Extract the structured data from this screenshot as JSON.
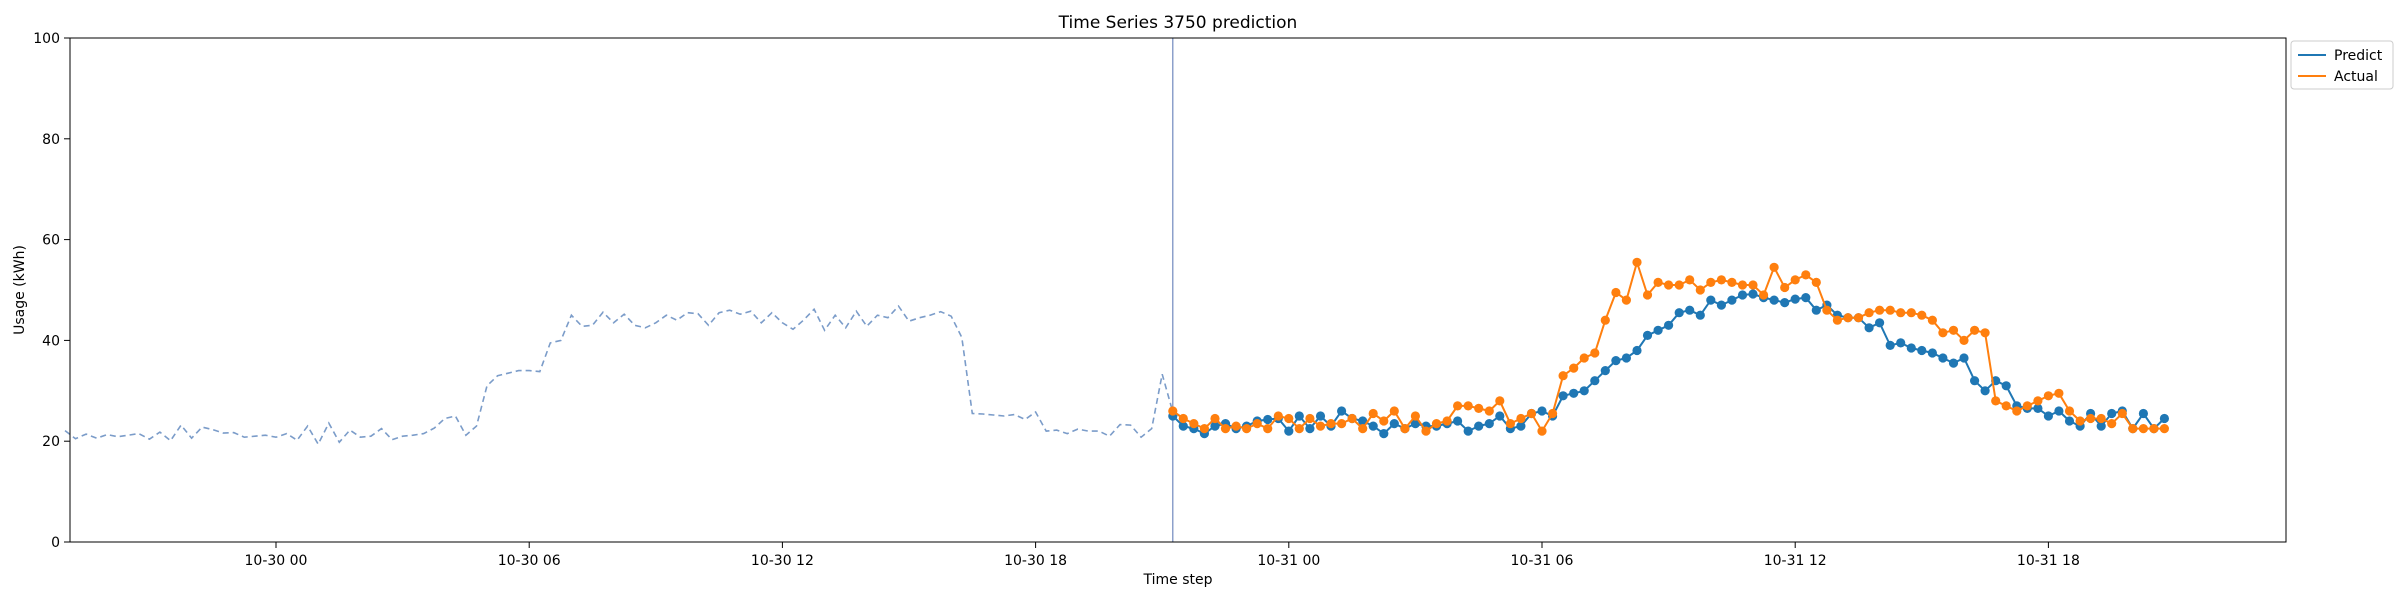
{
  "chart_data": {
    "type": "line",
    "title": "Time Series 3750 prediction",
    "xlabel": "Time step",
    "ylabel": "Usage (kWh)",
    "ylim": [
      0,
      100
    ],
    "yticks": [
      0,
      20,
      40,
      60,
      80,
      100
    ],
    "xticks": [
      "10-30 00",
      "10-30 06",
      "10-30 12",
      "10-30 18",
      "10-31 00",
      "10-31 06",
      "10-31 12",
      "10-31 18"
    ],
    "grid": false,
    "legend_position": "upper right, outside plot",
    "colors": {
      "predict": "#1f77b4",
      "actual": "#ff7f0e",
      "history": "#7b9cc9",
      "forecast_start_line": "#8da0cb"
    },
    "history": {
      "start": "10-29 19:00",
      "step_minutes": 15,
      "values": [
        22.1,
        20.5,
        21.4,
        20.6,
        21.3,
        20.9,
        21.2,
        21.5,
        20.4,
        21.8,
        20.1,
        23.2,
        20.6,
        22.8,
        22.3,
        21.6,
        21.7,
        20.8,
        21.0,
        21.2,
        20.8,
        21.5,
        20.2,
        23.0,
        19.4,
        23.6,
        19.8,
        22.2,
        20.8,
        21.0,
        22.5,
        20.3,
        21.0,
        21.2,
        21.5,
        22.6,
        24.5,
        25.0,
        21.2,
        23.0,
        31.0,
        33.0,
        33.5,
        34.0,
        34.0,
        33.8,
        39.5,
        40.0,
        45.0,
        42.8,
        43.0,
        45.6,
        43.5,
        45.2,
        43.0,
        42.5,
        43.5,
        45.0,
        44.0,
        45.5,
        45.3,
        43.0,
        45.5,
        46.0,
        45.2,
        45.8,
        43.5,
        45.5,
        43.5,
        42.2,
        44.0,
        46.2,
        42.0,
        45.0,
        42.5,
        45.8,
        42.8,
        45.0,
        44.5,
        46.8,
        43.8,
        44.5,
        45.0,
        45.7,
        44.8,
        40.6,
        25.5,
        25.4,
        25.2,
        25.0,
        25.3,
        24.3,
        25.8,
        22.0,
        22.2,
        21.5,
        22.4,
        22.0,
        22.0,
        21.0,
        23.3,
        23.2,
        20.8,
        22.5,
        33.3,
        25.8
      ]
    },
    "forecast_start": "10-30 21:15",
    "series": [
      {
        "name": "Predict",
        "start": "10-30 21:15",
        "step_minutes": 15,
        "values": [
          25.0,
          23.0,
          22.5,
          21.5,
          23.0,
          23.5,
          22.5,
          23.0,
          24.0,
          24.3,
          24.5,
          22.0,
          25.0,
          22.5,
          25.0,
          23.0,
          26.0,
          24.5,
          24.0,
          23.0,
          21.5,
          23.5,
          22.5,
          23.5,
          23.0,
          23.0,
          23.5,
          24.0,
          22.0,
          23.0,
          23.5,
          25.0,
          22.5,
          23.0,
          25.5,
          26.0,
          25.0,
          29.0,
          29.5,
          30.0,
          32.0,
          34.0,
          36.0,
          36.5,
          38.0,
          41.0,
          42.0,
          43.0,
          45.5,
          46.0,
          45.0,
          48.0,
          47.0,
          48.0,
          49.0,
          49.2,
          48.5,
          48.0,
          47.5,
          48.2,
          48.5,
          46.0,
          47.0,
          45.0,
          44.5,
          44.5,
          42.5,
          43.5,
          39.0,
          39.5,
          38.5,
          38.0,
          37.5,
          36.5,
          35.5,
          36.5,
          32.0,
          30.0,
          32.0,
          31.0,
          27.0,
          26.5,
          26.5,
          25.0,
          26.0,
          24.0,
          23.0,
          25.5,
          23.0,
          25.5,
          26.0,
          22.5,
          25.5,
          22.5,
          24.5
        ]
      },
      {
        "name": "Actual",
        "start": "10-30 21:15",
        "step_minutes": 15,
        "values": [
          26.0,
          24.5,
          23.5,
          22.5,
          24.5,
          22.5,
          23.0,
          22.5,
          23.5,
          22.5,
          25.0,
          24.5,
          22.5,
          24.5,
          23.0,
          23.5,
          23.5,
          24.5,
          22.5,
          25.5,
          24.0,
          26.0,
          22.5,
          25.0,
          22.0,
          23.5,
          24.0,
          27.0,
          27.0,
          26.5,
          26.0,
          28.0,
          23.5,
          24.5,
          25.5,
          22.0,
          25.5,
          33.0,
          34.5,
          36.5,
          37.5,
          44.0,
          49.5,
          48.0,
          55.5,
          49.0,
          51.5,
          51.0,
          51.0,
          52.0,
          50.0,
          51.5,
          52.0,
          51.5,
          51.0,
          51.0,
          49.0,
          54.5,
          50.5,
          52.0,
          53.0,
          51.5,
          46.0,
          44.0,
          44.5,
          44.5,
          45.5,
          46.0,
          46.0,
          45.5,
          45.5,
          45.0,
          44.0,
          41.5,
          42.0,
          40.0,
          42.0,
          41.5,
          28.0,
          27.0,
          26.0,
          27.0,
          28.0,
          29.0,
          29.5,
          26.0,
          24.0,
          24.5,
          24.5,
          23.5,
          25.5,
          22.5,
          22.5,
          22.5,
          22.5
        ]
      }
    ]
  }
}
